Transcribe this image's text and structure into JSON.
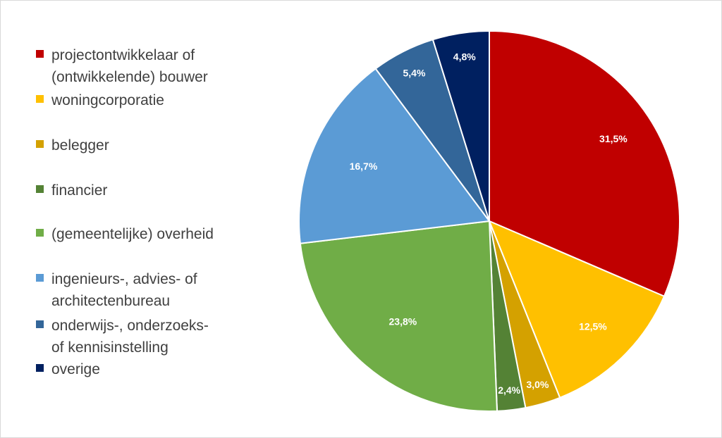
{
  "chart_data": {
    "type": "pie",
    "title": "",
    "legend_position": "left",
    "slices": [
      {
        "label": "projectontwikkelaar of (ontwikkelende) bouwer",
        "legend_lines": [
          "projectontwikkelaar of",
          "(ontwikkelende) bouwer"
        ],
        "value": 31.5,
        "value_label": "31,5%",
        "color": "#c00000"
      },
      {
        "label": "woningcorporatie",
        "legend_lines": [
          "woningcorporatie"
        ],
        "value": 12.5,
        "value_label": "12,5%",
        "color": "#ffc000"
      },
      {
        "label": "belegger",
        "legend_lines": [
          "belegger"
        ],
        "value": 3.0,
        "value_label": "3,0%",
        "color": "#d4a100"
      },
      {
        "label": "financier",
        "legend_lines": [
          "financier"
        ],
        "value": 2.4,
        "value_label": "2,4%",
        "color": "#548235"
      },
      {
        "label": "(gemeentelijke) overheid",
        "legend_lines": [
          "(gemeentelijke) overheid"
        ],
        "value": 23.8,
        "value_label": "23,8%",
        "color": "#70ad47"
      },
      {
        "label": "ingenieurs-, advies- of architectenbureau",
        "legend_lines": [
          "ingenieurs-, advies- of",
          "architectenbureau"
        ],
        "value": 16.7,
        "value_label": "16,7%",
        "color": "#5b9bd5"
      },
      {
        "label": "onderwijs-, onderzoeks- of kennisinstelling",
        "legend_lines": [
          "onderwijs-, onderzoeks-",
          "of kennisinstelling"
        ],
        "value": 5.4,
        "value_label": "5,4%",
        "color": "#336699"
      },
      {
        "label": "overige",
        "legend_lines": [
          "overige"
        ],
        "value": 4.8,
        "value_label": "4,8%",
        "color": "#002060"
      }
    ]
  }
}
